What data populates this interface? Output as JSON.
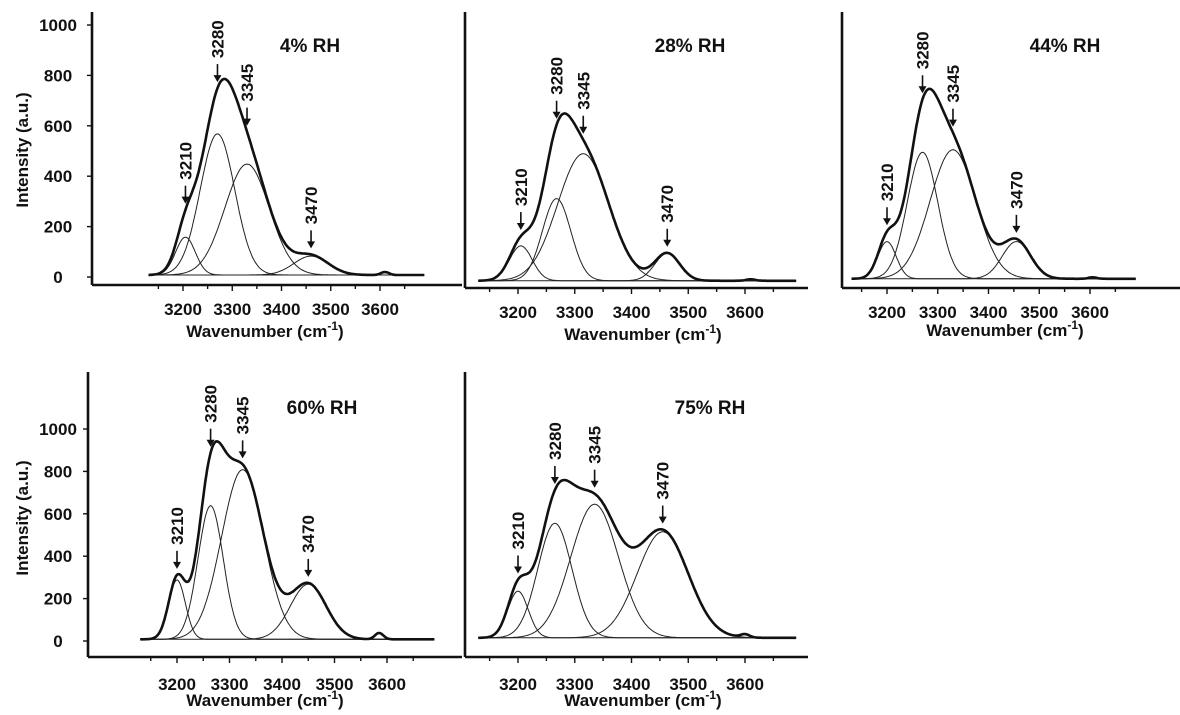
{
  "chart_data": [
    {
      "type": "line",
      "title": "4% RH",
      "xlabel": "Wavenumber (cm",
      "xlabel_sup": "-1",
      "xlabel_close": ")",
      "ylabel": "Intensity (a.u.)",
      "xlim": [
        3130,
        3690
      ],
      "ylim": [
        0,
        1150
      ],
      "xticks": [
        3200,
        3300,
        3400,
        3500,
        3600
      ],
      "yticks": [
        0,
        200,
        400,
        600,
        800,
        1000
      ],
      "peaks": [
        {
          "label": "3210",
          "center": 3205,
          "height": 150,
          "width": 20
        },
        {
          "label": "3280",
          "center": 3270,
          "height": 560,
          "width": 35
        },
        {
          "label": "3345",
          "center": 3330,
          "height": 440,
          "width": 45
        },
        {
          "label": "3470",
          "center": 3460,
          "height": 75,
          "width": 35
        }
      ],
      "minor_peak": {
        "center": 3610,
        "height": 12,
        "width": 8
      },
      "baseline": 8
    },
    {
      "type": "line",
      "title": "28% RH",
      "xlabel": "Wavenumber (cm",
      "xlabel_sup": "-1",
      "xlabel_close": ")",
      "ylabel": "",
      "xlim": [
        3130,
        3690
      ],
      "ylim": [
        0,
        1150
      ],
      "xticks": [
        3200,
        3300,
        3400,
        3500,
        3600
      ],
      "yticks": [],
      "peaks": [
        {
          "label": "3210",
          "center": 3205,
          "height": 140,
          "width": 20
        },
        {
          "label": "3280",
          "center": 3268,
          "height": 330,
          "width": 25
        },
        {
          "label": "3345",
          "center": 3315,
          "height": 510,
          "width": 45
        },
        {
          "label": "3470",
          "center": 3463,
          "height": 110,
          "width": 22
        }
      ],
      "minor_peak": {
        "center": 3610,
        "height": 6,
        "width": 8
      },
      "baseline": 5
    },
    {
      "type": "line",
      "title": "44% RH",
      "xlabel": "Wavenumber (cm",
      "xlabel_sup": "-1",
      "xlabel_close": ")",
      "ylabel": "",
      "xlim": [
        3130,
        3690
      ],
      "ylim": [
        0,
        1150
      ],
      "xticks": [
        3200,
        3300,
        3400,
        3500,
        3600
      ],
      "yticks": [],
      "peaks": [
        {
          "label": "3210",
          "center": 3200,
          "height": 150,
          "width": 18
        },
        {
          "label": "3280",
          "center": 3270,
          "height": 510,
          "width": 30
        },
        {
          "label": "3345",
          "center": 3330,
          "height": 520,
          "width": 45
        },
        {
          "label": "3470",
          "center": 3455,
          "height": 150,
          "width": 28
        }
      ],
      "minor_peak": {
        "center": 3605,
        "height": 6,
        "width": 8
      },
      "baseline": 5
    },
    {
      "type": "line",
      "title": "60% RH",
      "xlabel": "Wavenumber (cm",
      "xlabel_sup": "-1",
      "xlabel_close": ")",
      "ylabel": "Intensity (a.u.)",
      "xlim": [
        3130,
        3690
      ],
      "ylim": [
        0,
        1150
      ],
      "xticks": [
        3200,
        3300,
        3400,
        3500,
        3600
      ],
      "yticks": [
        0,
        200,
        400,
        600,
        800,
        1000
      ],
      "peaks": [
        {
          "label": "3210",
          "center": 3200,
          "height": 280,
          "width": 16
        },
        {
          "label": "3280",
          "center": 3264,
          "height": 630,
          "width": 24
        },
        {
          "label": "3345",
          "center": 3325,
          "height": 800,
          "width": 40
        },
        {
          "label": "3470",
          "center": 3450,
          "height": 260,
          "width": 34
        }
      ],
      "minor_peak": {
        "center": 3585,
        "height": 30,
        "width": 8
      },
      "baseline": 8
    },
    {
      "type": "line",
      "title": "75% RH",
      "xlabel": "Wavenumber (cm",
      "xlabel_sup": "-1",
      "xlabel_close": ")",
      "ylabel": "",
      "xlim": [
        3130,
        3690
      ],
      "ylim": [
        0,
        1150
      ],
      "xticks": [
        3200,
        3300,
        3400,
        3500,
        3600
      ],
      "yticks": [],
      "peaks": [
        {
          "label": "3210",
          "center": 3200,
          "height": 220,
          "width": 18
        },
        {
          "label": "3280",
          "center": 3265,
          "height": 540,
          "width": 30
        },
        {
          "label": "3345",
          "center": 3335,
          "height": 630,
          "width": 42
        },
        {
          "label": "3470",
          "center": 3455,
          "height": 500,
          "width": 45
        }
      ],
      "minor_peak": {
        "center": 3600,
        "height": 15,
        "width": 8
      },
      "baseline": 15
    }
  ]
}
